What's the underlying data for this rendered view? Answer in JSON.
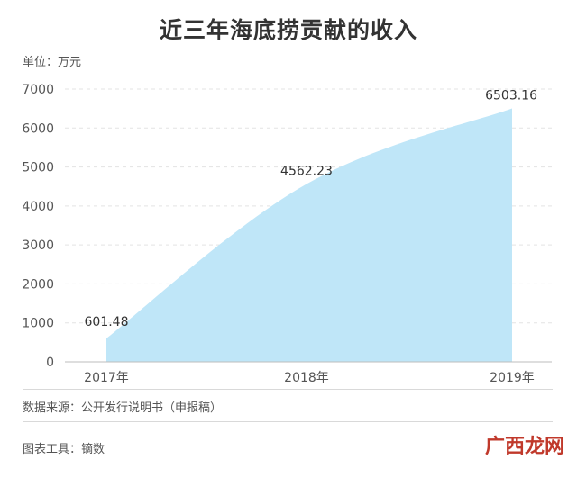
{
  "title": "近三年海底捞贡献的收入",
  "unit_label": "单位：万元",
  "source_text": "数据来源：公开发行说明书（申报稿）",
  "tool_text": "图表工具：镝数",
  "watermark_text": "广西龙网",
  "colors": {
    "area_fill": "#bfe6f8",
    "grid": "#e3e3e3",
    "text": "#555555",
    "title": "#333333"
  },
  "chart_data": {
    "type": "area",
    "categories": [
      "2017年",
      "2018年",
      "2019年"
    ],
    "values": [
      601.48,
      4562.23,
      6503.16
    ],
    "value_labels": [
      "601.48",
      "4562.23",
      "6503.16"
    ],
    "ylim": [
      0,
      7000
    ],
    "yticks": [
      "0",
      "1000",
      "2000",
      "3000",
      "4000",
      "5000",
      "6000",
      "7000"
    ],
    "grid": true
  }
}
